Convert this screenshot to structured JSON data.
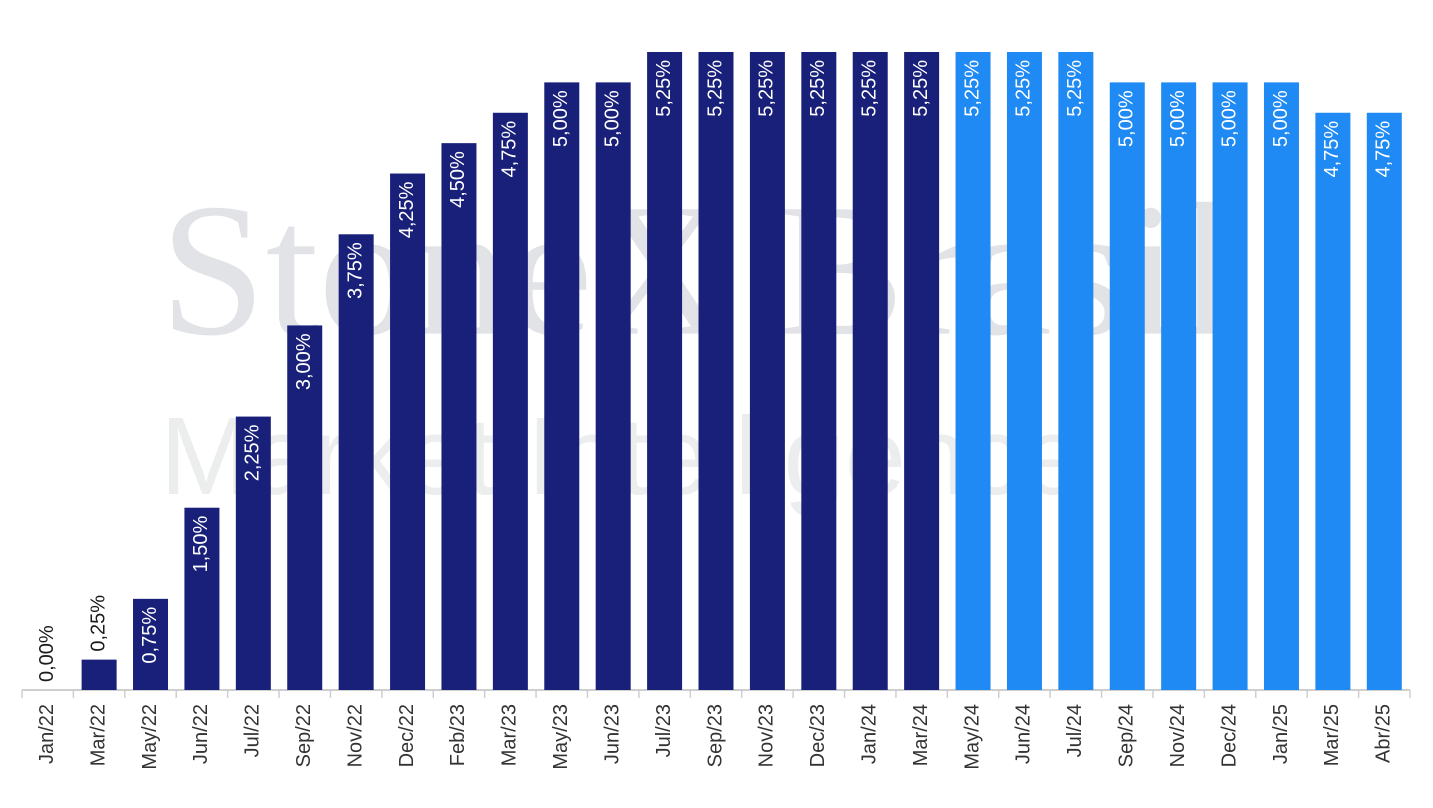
{
  "chart_data": {
    "type": "bar",
    "watermark": [
      "StoneX Brasil",
      "Market Intelligence"
    ],
    "categories": [
      "Jan/22",
      "Mar/22",
      "May/22",
      "Jun/22",
      "Jul/22",
      "Sep/22",
      "Nov/22",
      "Dec/22",
      "Feb/23",
      "Mar/23",
      "May/23",
      "Jun/23",
      "Jul/23",
      "Sep/23",
      "Nov/23",
      "Dec/23",
      "Jan/24",
      "Mar/24",
      "May/24",
      "Jun/24",
      "Jul/24",
      "Sep/24",
      "Nov/24",
      "Dec/24",
      "Jan/25",
      "Mar/25",
      "Abr/25"
    ],
    "values": [
      0,
      0.25,
      0.75,
      1.5,
      2.25,
      3,
      3.75,
      4.25,
      4.5,
      4.75,
      5,
      5,
      5.25,
      5.25,
      5.25,
      5.25,
      5.25,
      5.25,
      5.25,
      5.25,
      5.25,
      5,
      5,
      5,
      5,
      4.75,
      4.75
    ],
    "value_labels": [
      "0,00%",
      "0,25%",
      "0,75%",
      "1,50%",
      "2,25%",
      "3,00%",
      "3,75%",
      "4,25%",
      "4,50%",
      "4,75%",
      "5,00%",
      "5,00%",
      "5,25%",
      "5,25%",
      "5,25%",
      "5,25%",
      "5,25%",
      "5,25%",
      "5,25%",
      "5,25%",
      "5,25%",
      "5,00%",
      "5,00%",
      "5,00%",
      "5,00%",
      "4,75%",
      "4,75%"
    ],
    "colors": [
      "#19207a",
      "#19207a",
      "#19207a",
      "#19207a",
      "#19207a",
      "#19207a",
      "#19207a",
      "#19207a",
      "#19207a",
      "#19207a",
      "#19207a",
      "#19207a",
      "#19207a",
      "#19207a",
      "#19207a",
      "#19207a",
      "#19207a",
      "#19207a",
      "#1f8af3",
      "#1f8af3",
      "#1f8af3",
      "#1f8af3",
      "#1f8af3",
      "#1f8af3",
      "#1f8af3",
      "#1f8af3",
      "#1f8af3"
    ],
    "ylim": [
      0,
      5.25
    ]
  }
}
